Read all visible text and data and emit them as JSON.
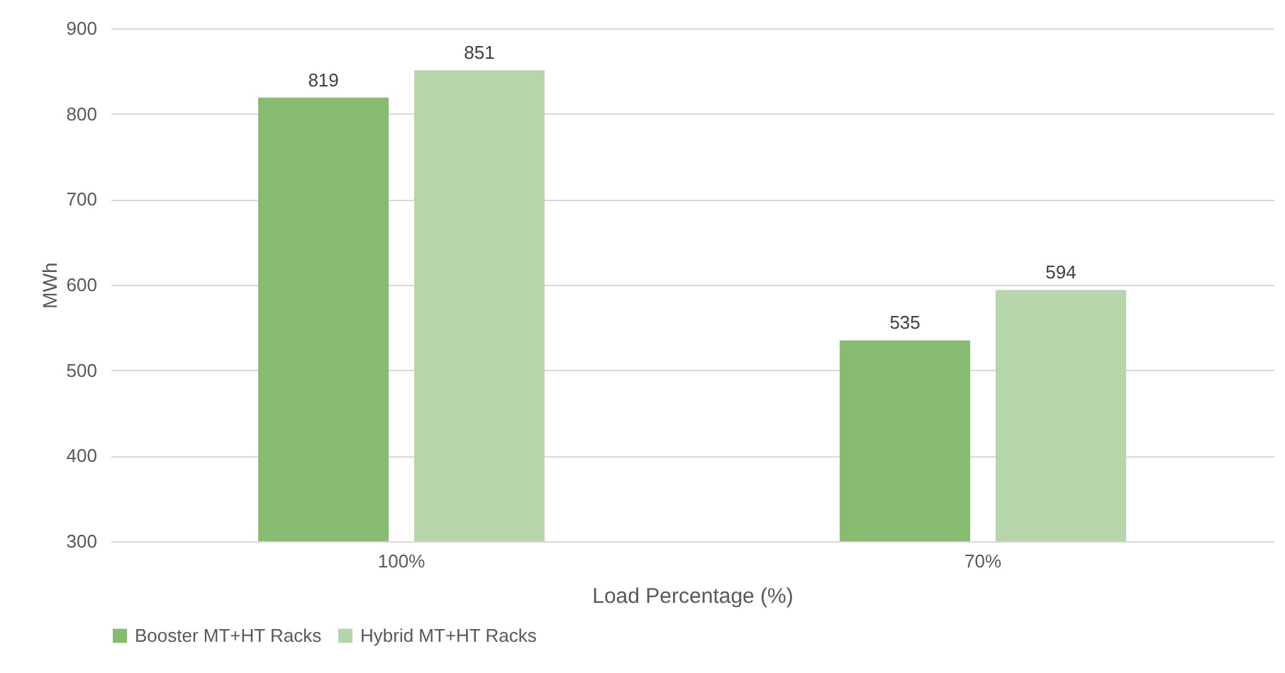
{
  "chart_data": {
    "type": "bar",
    "xlabel": "Load Percentage (%)",
    "ylabel": "MWh",
    "categories": [
      "100%",
      "70%"
    ],
    "series": [
      {
        "name": "Booster MT+HT Racks",
        "color": "#87bb6f",
        "values": [
          819,
          535
        ]
      },
      {
        "name": "Hybrid MT+HT Racks",
        "color": "#b7d5ab",
        "values": [
          851,
          594
        ]
      }
    ],
    "ylim": [
      300,
      900
    ],
    "yticks": [
      300,
      400,
      500,
      600,
      700,
      800,
      900
    ],
    "grid": "y",
    "legend": "bottom",
    "data_labels": true
  }
}
